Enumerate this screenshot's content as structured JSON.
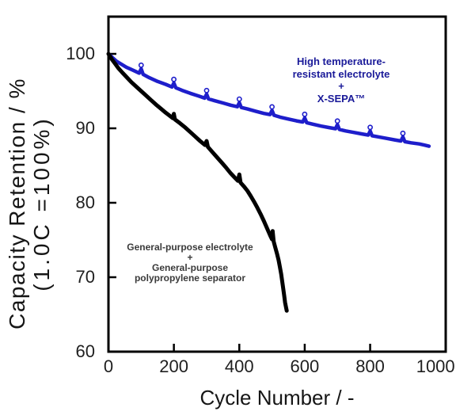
{
  "figure": {
    "ylabel_line1": "Capacity Retention / %",
    "ylabel_line2": "(1.0C =100%)",
    "xlabel": "Cycle Number / -"
  },
  "annotations": {
    "blue": {
      "color": "#1a1a99",
      "lines": [
        "High temperature-",
        "resistant electrolyte",
        "+",
        "X-SEPA™"
      ]
    },
    "black": {
      "color": "#3a3a3a",
      "lines": [
        "General-purpose electrolyte",
        "+",
        "General-purpose",
        "polypropylene separator"
      ]
    }
  },
  "chart_data": {
    "type": "line",
    "title": "",
    "xlabel": "Cycle Number / -",
    "ylabel": "Capacity Retention / % (1.0C =100%)",
    "xlim": [
      0,
      1031
    ],
    "ylim": [
      60,
      105
    ],
    "grid": false,
    "axis_color": "#000000",
    "x_ticks": [
      0,
      200,
      400,
      600,
      800,
      1000
    ],
    "y_ticks": [
      60,
      70,
      80,
      90,
      100
    ],
    "x_tick_marks": [
      200,
      400,
      600,
      800
    ],
    "y_tick_marks": [
      70,
      80,
      90,
      100
    ],
    "series": [
      {
        "name": "High temperature-resistant electrolyte + X-SEPA™",
        "color": "#1e1ecb",
        "width": 4.5,
        "bump_marker_x": [
          100,
          200,
          300,
          400,
          500,
          600,
          700,
          800,
          900
        ],
        "points": [
          [
            0,
            100
          ],
          [
            12,
            99.5
          ],
          [
            25,
            99.0
          ],
          [
            40,
            98.6
          ],
          [
            55,
            98.2
          ],
          [
            70,
            97.9
          ],
          [
            85,
            97.6
          ],
          [
            94,
            97.4
          ],
          [
            100,
            98.0
          ],
          [
            106,
            97.25
          ],
          [
            125,
            96.8
          ],
          [
            150,
            96.3
          ],
          [
            175,
            95.9
          ],
          [
            194,
            95.55
          ],
          [
            200,
            96.1
          ],
          [
            206,
            95.45
          ],
          [
            225,
            95.1
          ],
          [
            250,
            94.7
          ],
          [
            275,
            94.35
          ],
          [
            294,
            94.05
          ],
          [
            300,
            94.6
          ],
          [
            306,
            93.95
          ],
          [
            325,
            93.7
          ],
          [
            350,
            93.4
          ],
          [
            375,
            93.1
          ],
          [
            394,
            92.9
          ],
          [
            400,
            93.45
          ],
          [
            406,
            92.8
          ],
          [
            425,
            92.6
          ],
          [
            450,
            92.3
          ],
          [
            475,
            92.0
          ],
          [
            494,
            91.85
          ],
          [
            500,
            92.4
          ],
          [
            506,
            91.75
          ],
          [
            525,
            91.5
          ],
          [
            550,
            91.25
          ],
          [
            575,
            91.0
          ],
          [
            594,
            90.85
          ],
          [
            600,
            91.4
          ],
          [
            606,
            90.75
          ],
          [
            625,
            90.55
          ],
          [
            650,
            90.3
          ],
          [
            675,
            90.1
          ],
          [
            694,
            89.95
          ],
          [
            700,
            90.5
          ],
          [
            706,
            89.85
          ],
          [
            725,
            89.65
          ],
          [
            750,
            89.45
          ],
          [
            775,
            89.25
          ],
          [
            794,
            89.1
          ],
          [
            800,
            89.65
          ],
          [
            806,
            89.0
          ],
          [
            825,
            88.85
          ],
          [
            850,
            88.65
          ],
          [
            875,
            88.45
          ],
          [
            894,
            88.3
          ],
          [
            900,
            88.85
          ],
          [
            906,
            88.2
          ],
          [
            925,
            88.05
          ],
          [
            950,
            87.9
          ],
          [
            965,
            87.75
          ],
          [
            980,
            87.6
          ]
        ]
      },
      {
        "name": "General-purpose electrolyte + General-purpose polypropylene separator",
        "color": "#000000",
        "width": 5,
        "bump_marker_x": [],
        "points": [
          [
            0,
            100
          ],
          [
            10,
            99.3
          ],
          [
            20,
            98.7
          ],
          [
            30,
            98.1
          ],
          [
            42,
            97.5
          ],
          [
            55,
            96.9
          ],
          [
            70,
            96.2
          ],
          [
            85,
            95.6
          ],
          [
            100,
            95.0
          ],
          [
            115,
            94.4
          ],
          [
            130,
            93.8
          ],
          [
            145,
            93.2
          ],
          [
            160,
            92.65
          ],
          [
            175,
            92.1
          ],
          [
            190,
            91.6
          ],
          [
            197,
            91.35
          ],
          [
            200,
            91.95
          ],
          [
            203,
            91.2
          ],
          [
            218,
            90.7
          ],
          [
            235,
            90.1
          ],
          [
            250,
            89.5
          ],
          [
            265,
            88.9
          ],
          [
            280,
            88.3
          ],
          [
            295,
            87.75
          ],
          [
            300,
            88.3
          ],
          [
            304,
            87.5
          ],
          [
            318,
            86.8
          ],
          [
            332,
            86.1
          ],
          [
            346,
            85.4
          ],
          [
            360,
            84.7
          ],
          [
            374,
            83.95
          ],
          [
            388,
            83.3
          ],
          [
            396,
            82.95
          ],
          [
            400,
            83.8
          ],
          [
            404,
            82.7
          ],
          [
            415,
            82.15
          ],
          [
            425,
            81.6
          ],
          [
            435,
            80.9
          ],
          [
            445,
            80.15
          ],
          [
            455,
            79.35
          ],
          [
            465,
            78.5
          ],
          [
            475,
            77.55
          ],
          [
            485,
            76.55
          ],
          [
            495,
            75.55
          ],
          [
            500,
            75.1
          ],
          [
            502,
            76.2
          ],
          [
            505,
            74.8
          ],
          [
            510,
            74.0
          ],
          [
            515,
            73.2
          ],
          [
            520,
            72.3
          ],
          [
            524,
            71.4
          ],
          [
            528,
            70.4
          ],
          [
            531,
            69.5
          ],
          [
            534,
            68.6
          ],
          [
            537,
            67.6
          ],
          [
            540,
            66.6
          ],
          [
            543,
            65.9
          ],
          [
            545,
            65.5
          ]
        ]
      }
    ]
  }
}
